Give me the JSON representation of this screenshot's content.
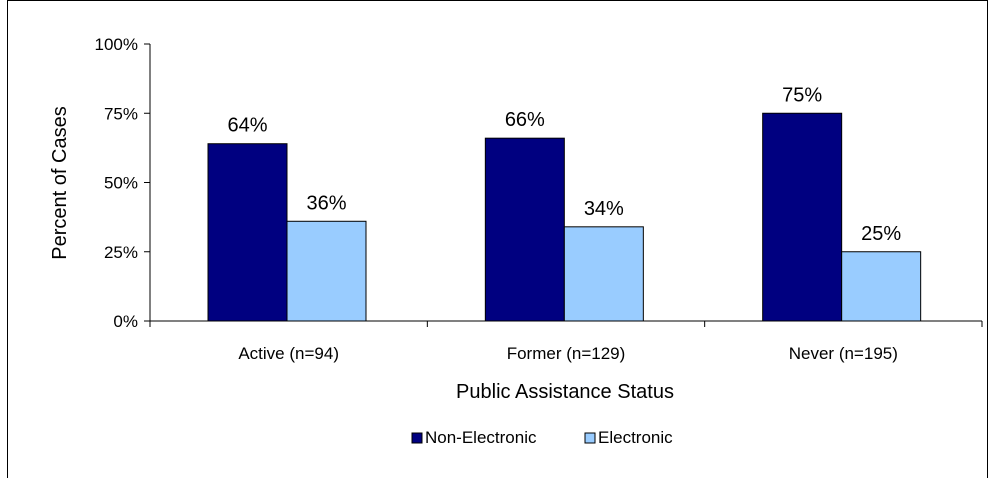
{
  "chart_data": {
    "type": "bar",
    "title": "",
    "xlabel": "Public Assistance Status",
    "ylabel": "Percent of Cases",
    "categories": [
      "Active (n=94)",
      "Former (n=129)",
      "Never (n=195)"
    ],
    "series": [
      {
        "name": "Non-Electronic",
        "values": [
          64,
          66,
          75
        ],
        "color": "#000080"
      },
      {
        "name": "Electronic",
        "values": [
          36,
          34,
          25
        ],
        "color": "#99CCFF"
      }
    ],
    "value_labels": [
      [
        "64%",
        "66%",
        "75%"
      ],
      [
        "36%",
        "34%",
        "25%"
      ]
    ],
    "ylim": [
      0,
      100
    ],
    "yticks": [
      0,
      25,
      50,
      75,
      100
    ],
    "ytick_labels": [
      "0%",
      "25%",
      "50%",
      "75%",
      "100%"
    ],
    "grid": false,
    "legend_position": "bottom"
  }
}
